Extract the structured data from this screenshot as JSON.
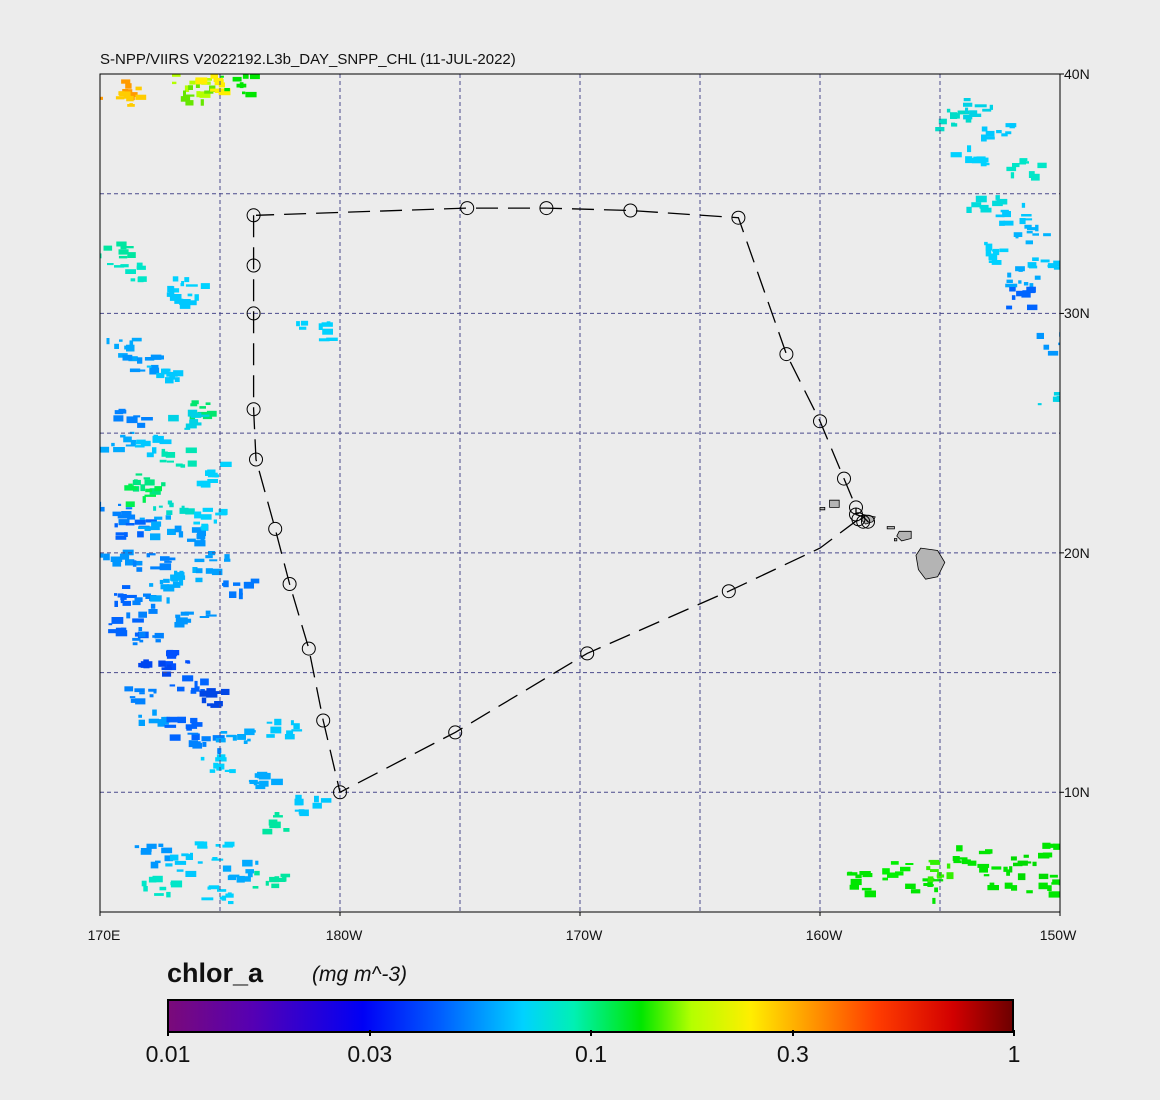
{
  "title": "S-NPP/VIIRS V2022192.L3b_DAY_SNPP_CHL (11-JUL-2022)",
  "map": {
    "lon_range_east_deg": [
      170,
      210
    ],
    "lat_range_deg": [
      5,
      40
    ],
    "grid_lon_deg": [
      175,
      180,
      185,
      190,
      195,
      200,
      205
    ],
    "grid_lat_deg": [
      10,
      15,
      20,
      25,
      30,
      35
    ],
    "grid_color": "#4a4a8c",
    "background": "#ececec",
    "land_color": "#b4b4b4",
    "lat_labels": [
      {
        "lat": 40,
        "text": "40N"
      },
      {
        "lat": 30,
        "text": "30N"
      },
      {
        "lat": 20,
        "text": "20N"
      },
      {
        "lat": 10,
        "text": "10N"
      }
    ],
    "lon_labels": [
      {
        "lon": 170,
        "text": "170E"
      },
      {
        "lon": 180,
        "text": "180W"
      },
      {
        "lon": 190,
        "text": "170W"
      },
      {
        "lon": 200,
        "text": "160W"
      },
      {
        "lon": 210,
        "text": "150W"
      }
    ],
    "track_points": [
      [
        176.4,
        34.1
      ],
      [
        176.4,
        32.0
      ],
      [
        176.4,
        30.0
      ],
      [
        176.4,
        26.0
      ],
      [
        176.5,
        23.9
      ],
      [
        177.3,
        21.0
      ],
      [
        177.9,
        18.7
      ],
      [
        178.7,
        16.0
      ],
      [
        179.3,
        13.0
      ],
      [
        180.0,
        10.0
      ],
      [
        184.8,
        12.5
      ],
      [
        190.3,
        15.8
      ],
      [
        196.2,
        18.4
      ],
      [
        200.0,
        20.2
      ],
      [
        201.6,
        21.4
      ],
      [
        202.0,
        21.3
      ],
      [
        201.8,
        21.5
      ],
      [
        201.5,
        21.6
      ],
      [
        201.5,
        21.9
      ],
      [
        201.0,
        23.1
      ],
      [
        200.0,
        25.5
      ],
      [
        198.6,
        28.3
      ],
      [
        196.6,
        34.0
      ],
      [
        192.1,
        34.3
      ],
      [
        188.6,
        34.4
      ],
      [
        185.3,
        34.4
      ],
      [
        176.5,
        34.1
      ]
    ],
    "station_markers": [
      [
        176.4,
        34.1
      ],
      [
        176.4,
        32.0
      ],
      [
        176.4,
        30.0
      ],
      [
        176.4,
        26.0
      ],
      [
        176.5,
        23.9
      ],
      [
        177.3,
        21.0
      ],
      [
        177.9,
        18.7
      ],
      [
        178.7,
        16.0
      ],
      [
        179.3,
        13.0
      ],
      [
        180.0,
        10.0
      ],
      [
        184.8,
        12.5
      ],
      [
        190.3,
        15.8
      ],
      [
        196.2,
        18.4
      ],
      [
        201.8,
        21.3
      ],
      [
        202.0,
        21.3
      ],
      [
        201.6,
        21.4
      ],
      [
        201.5,
        21.6
      ],
      [
        201.5,
        21.9
      ],
      [
        201.0,
        23.1
      ],
      [
        200.0,
        25.5
      ],
      [
        198.6,
        28.3
      ],
      [
        196.6,
        34.0
      ],
      [
        192.1,
        34.3
      ],
      [
        188.6,
        34.4
      ],
      [
        185.3,
        34.4
      ]
    ],
    "chlorophyll_patches": [
      {
        "lon": 170.6,
        "lat": 39.4,
        "color": "#ff9a00"
      },
      {
        "lon": 170.9,
        "lat": 39.1,
        "color": "#ffcc00"
      },
      {
        "lon": 173.6,
        "lat": 39.6,
        "color": "#b4ff00"
      },
      {
        "lon": 174.0,
        "lat": 39.3,
        "color": "#66e600"
      },
      {
        "lon": 174.4,
        "lat": 39.7,
        "color": "#ffee00"
      },
      {
        "lon": 175.6,
        "lat": 39.6,
        "color": "#00e600"
      },
      {
        "lon": 173.5,
        "lat": 31.2,
        "color": "#00d2ff"
      },
      {
        "lon": 173.0,
        "lat": 30.8,
        "color": "#00c8ff"
      },
      {
        "lon": 171.0,
        "lat": 31.8,
        "color": "#00e6c8"
      },
      {
        "lon": 170.5,
        "lat": 32.6,
        "color": "#00e6a0"
      },
      {
        "lon": 178.8,
        "lat": 29.3,
        "color": "#00d2ff"
      },
      {
        "lon": 170.8,
        "lat": 28.6,
        "color": "#00aaff"
      },
      {
        "lon": 171.6,
        "lat": 28.0,
        "color": "#0096ff"
      },
      {
        "lon": 172.6,
        "lat": 27.6,
        "color": "#00c8ff"
      },
      {
        "lon": 174.3,
        "lat": 26.0,
        "color": "#00e66e"
      },
      {
        "lon": 173.4,
        "lat": 25.6,
        "color": "#00d2e6"
      },
      {
        "lon": 171.2,
        "lat": 25.8,
        "color": "#0082ff"
      },
      {
        "lon": 170.6,
        "lat": 24.7,
        "color": "#00aaff"
      },
      {
        "lon": 172.0,
        "lat": 24.6,
        "color": "#00c8ff"
      },
      {
        "lon": 173.1,
        "lat": 24.0,
        "color": "#00e6b4"
      },
      {
        "lon": 174.4,
        "lat": 23.4,
        "color": "#00d2ff"
      },
      {
        "lon": 172.0,
        "lat": 23.0,
        "color": "#00e682"
      },
      {
        "lon": 171.6,
        "lat": 22.5,
        "color": "#00f050"
      },
      {
        "lon": 172.9,
        "lat": 22.0,
        "color": "#00dcc8"
      },
      {
        "lon": 170.5,
        "lat": 21.8,
        "color": "#0082ff"
      },
      {
        "lon": 171.3,
        "lat": 21.0,
        "color": "#0064ff"
      },
      {
        "lon": 172.2,
        "lat": 21.2,
        "color": "#00aaff"
      },
      {
        "lon": 173.7,
        "lat": 20.8,
        "color": "#0096ff"
      },
      {
        "lon": 174.6,
        "lat": 21.5,
        "color": "#00d2ff"
      },
      {
        "lon": 170.7,
        "lat": 20.0,
        "color": "#0096ff"
      },
      {
        "lon": 172.0,
        "lat": 19.6,
        "color": "#0082ff"
      },
      {
        "lon": 173.3,
        "lat": 19.1,
        "color": "#00b4ff"
      },
      {
        "lon": 174.5,
        "lat": 19.7,
        "color": "#00a0ff"
      },
      {
        "lon": 170.5,
        "lat": 18.4,
        "color": "#0064ff"
      },
      {
        "lon": 171.6,
        "lat": 17.9,
        "color": "#0082ff"
      },
      {
        "lon": 172.5,
        "lat": 18.5,
        "color": "#00aaff"
      },
      {
        "lon": 173.8,
        "lat": 17.5,
        "color": "#0096ff"
      },
      {
        "lon": 175.6,
        "lat": 18.6,
        "color": "#0078ff"
      },
      {
        "lon": 170.9,
        "lat": 17.0,
        "color": "#0064ff"
      },
      {
        "lon": 172.0,
        "lat": 16.5,
        "color": "#0082ff"
      },
      {
        "lon": 173.2,
        "lat": 15.7,
        "color": "#0050ff"
      },
      {
        "lon": 172.1,
        "lat": 15.2,
        "color": "#0046f0"
      },
      {
        "lon": 173.5,
        "lat": 14.6,
        "color": "#0064ff"
      },
      {
        "lon": 171.6,
        "lat": 14.2,
        "color": "#0082ff"
      },
      {
        "lon": 174.6,
        "lat": 14.1,
        "color": "#0046e6"
      },
      {
        "lon": 172.1,
        "lat": 13.3,
        "color": "#00a0ff"
      },
      {
        "lon": 173.3,
        "lat": 12.8,
        "color": "#0064ff"
      },
      {
        "lon": 174.2,
        "lat": 12.1,
        "color": "#0082ff"
      },
      {
        "lon": 175.5,
        "lat": 12.5,
        "color": "#00aaff"
      },
      {
        "lon": 177.5,
        "lat": 12.8,
        "color": "#00c8ff"
      },
      {
        "lon": 174.9,
        "lat": 11.2,
        "color": "#00d2ff"
      },
      {
        "lon": 176.5,
        "lat": 10.6,
        "color": "#00aaff"
      },
      {
        "lon": 178.6,
        "lat": 9.5,
        "color": "#00c8ff"
      },
      {
        "lon": 177.3,
        "lat": 8.8,
        "color": "#00e6a0"
      },
      {
        "lon": 172.0,
        "lat": 7.5,
        "color": "#0096ff"
      },
      {
        "lon": 173.4,
        "lat": 7.1,
        "color": "#00c8ff"
      },
      {
        "lon": 174.6,
        "lat": 7.6,
        "color": "#00d2ff"
      },
      {
        "lon": 175.8,
        "lat": 6.8,
        "color": "#00aaff"
      },
      {
        "lon": 172.3,
        "lat": 6.2,
        "color": "#00e6c8"
      },
      {
        "lon": 174.9,
        "lat": 5.8,
        "color": "#00d2ff"
      },
      {
        "lon": 177.0,
        "lat": 6.3,
        "color": "#00e6a0"
      },
      {
        "lon": 205.4,
        "lat": 38.2,
        "color": "#00dcc8"
      },
      {
        "lon": 206.6,
        "lat": 38.6,
        "color": "#00d2e6"
      },
      {
        "lon": 207.3,
        "lat": 37.7,
        "color": "#00c8ff"
      },
      {
        "lon": 206.1,
        "lat": 36.7,
        "color": "#00d2ff"
      },
      {
        "lon": 208.4,
        "lat": 36.2,
        "color": "#00e6c8"
      },
      {
        "lon": 206.8,
        "lat": 34.8,
        "color": "#00dcdc"
      },
      {
        "lon": 207.8,
        "lat": 34.2,
        "color": "#00c8ff"
      },
      {
        "lon": 208.6,
        "lat": 33.4,
        "color": "#00b4ff"
      },
      {
        "lon": 207.1,
        "lat": 32.6,
        "color": "#00d2ff"
      },
      {
        "lon": 208.4,
        "lat": 31.6,
        "color": "#00aaff"
      },
      {
        "lon": 209.3,
        "lat": 32.2,
        "color": "#00c8ff"
      },
      {
        "lon": 208.0,
        "lat": 30.7,
        "color": "#0064ff"
      },
      {
        "lon": 209.7,
        "lat": 28.8,
        "color": "#0096ff"
      },
      {
        "lon": 209.6,
        "lat": 26.4,
        "color": "#00d2e6"
      },
      {
        "lon": 201.7,
        "lat": 6.3,
        "color": "#00e600"
      },
      {
        "lon": 202.9,
        "lat": 6.8,
        "color": "#00f000"
      },
      {
        "lon": 204.1,
        "lat": 6.0,
        "color": "#00e600"
      },
      {
        "lon": 205.0,
        "lat": 6.9,
        "color": "#32f000"
      },
      {
        "lon": 206.2,
        "lat": 7.4,
        "color": "#00e600"
      },
      {
        "lon": 207.3,
        "lat": 6.5,
        "color": "#00e600"
      },
      {
        "lon": 208.5,
        "lat": 7.0,
        "color": "#00dc00"
      },
      {
        "lon": 209.3,
        "lat": 6.2,
        "color": "#00e600"
      },
      {
        "lon": 209.6,
        "lat": 7.5,
        "color": "#00e600"
      }
    ]
  },
  "colorbar": {
    "name": "chlor_a",
    "units": "(mg m^-3)",
    "ticks": [
      {
        "value": 0.01,
        "label": "0.01"
      },
      {
        "value": 0.03,
        "label": "0.03"
      },
      {
        "value": 0.1,
        "label": "0.1"
      },
      {
        "value": 0.3,
        "label": "0.3"
      },
      {
        "value": 1,
        "label": "1"
      }
    ],
    "range": [
      0.01,
      1
    ],
    "scale": "log"
  }
}
